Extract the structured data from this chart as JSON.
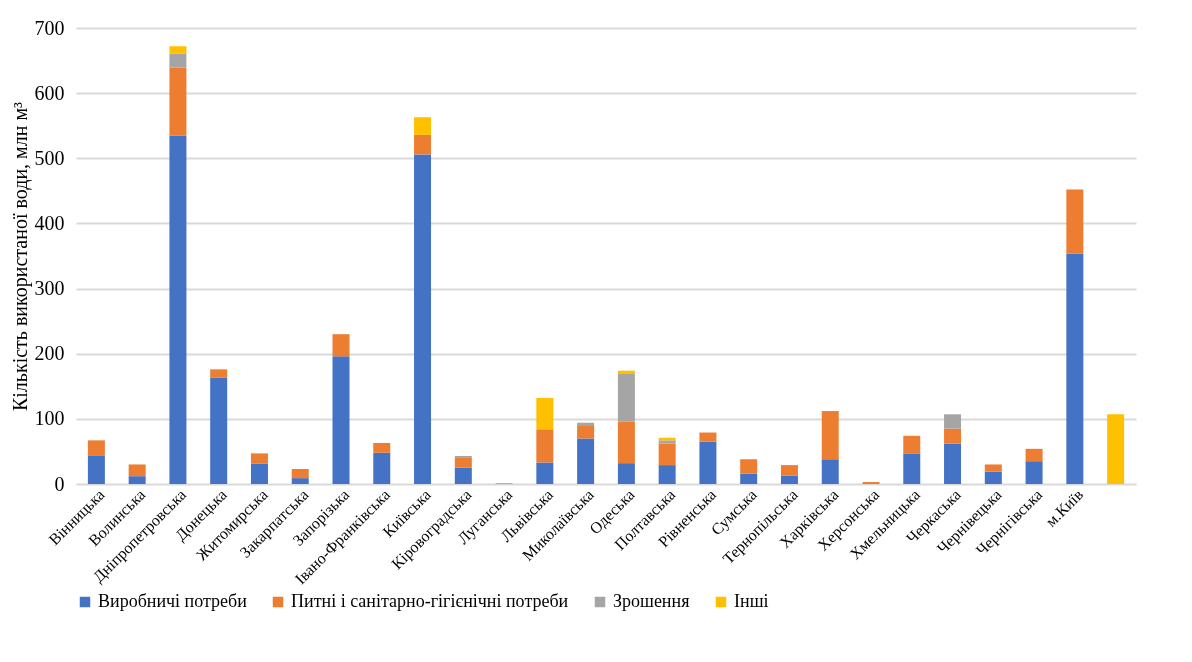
{
  "chart_data": {
    "type": "bar",
    "stacked": true,
    "ylabel": "Кількість використаної води, млн м³",
    "categories": [
      "Вінницька",
      "Волинська",
      "Дніпропетровська",
      "Донецька",
      "Житомирська",
      "Закарпатська",
      "Запорізька",
      "Івано-Франківська",
      "Київська",
      "Кіровоградська",
      "Луганська",
      "Львівська",
      "Миколаївська",
      "Одеська",
      "Полтавська",
      "Рівненська",
      "Сумська",
      "Тернопільська",
      "Харківська",
      "Херсонська",
      "Хмельницька",
      "Черкаська",
      "Чернівецька",
      "Чернігівська",
      "м.Київ",
      null
    ],
    "series": [
      {
        "name": "Виробничі потреби",
        "color": "#4472c4",
        "values": [
          44,
          12,
          535,
          163,
          31,
          9,
          196,
          48,
          506,
          25,
          0,
          33,
          70,
          32,
          29,
          65,
          16,
          13,
          38,
          null,
          47,
          62,
          19,
          35,
          354,
          0
        ]
      },
      {
        "name": "Питні і санітарно-гігієнічні потреби",
        "color": "#ed7d31",
        "values": [
          23,
          18,
          104,
          13,
          16,
          14,
          34,
          15,
          30,
          15,
          1,
          51,
          19,
          64,
          33,
          14,
          22,
          16,
          74,
          3,
          27,
          23,
          11,
          19,
          98,
          0
        ]
      },
      {
        "name": "Зрошення",
        "color": "#a5a5a5",
        "values": [
          0,
          0,
          22,
          0,
          0,
          0,
          null,
          0,
          null,
          3,
          0,
          0,
          5,
          74,
          5,
          0,
          0,
          0,
          0,
          0,
          0,
          22,
          0,
          0,
          0,
          0
        ]
      },
      {
        "name": "Інші",
        "color": "#ffc000",
        "values": [
          0,
          0,
          11,
          0,
          0,
          0,
          0,
          0,
          27,
          0,
          0,
          48,
          0,
          4,
          4,
          0,
          0,
          0,
          0,
          0,
          0,
          0,
          0,
          0,
          0,
          107
        ]
      }
    ],
    "ylim": [
      0,
      700
    ],
    "yticks": [
      0,
      100,
      200,
      300,
      400,
      500,
      600,
      700
    ],
    "grid": "y",
    "legend": "bottom"
  }
}
